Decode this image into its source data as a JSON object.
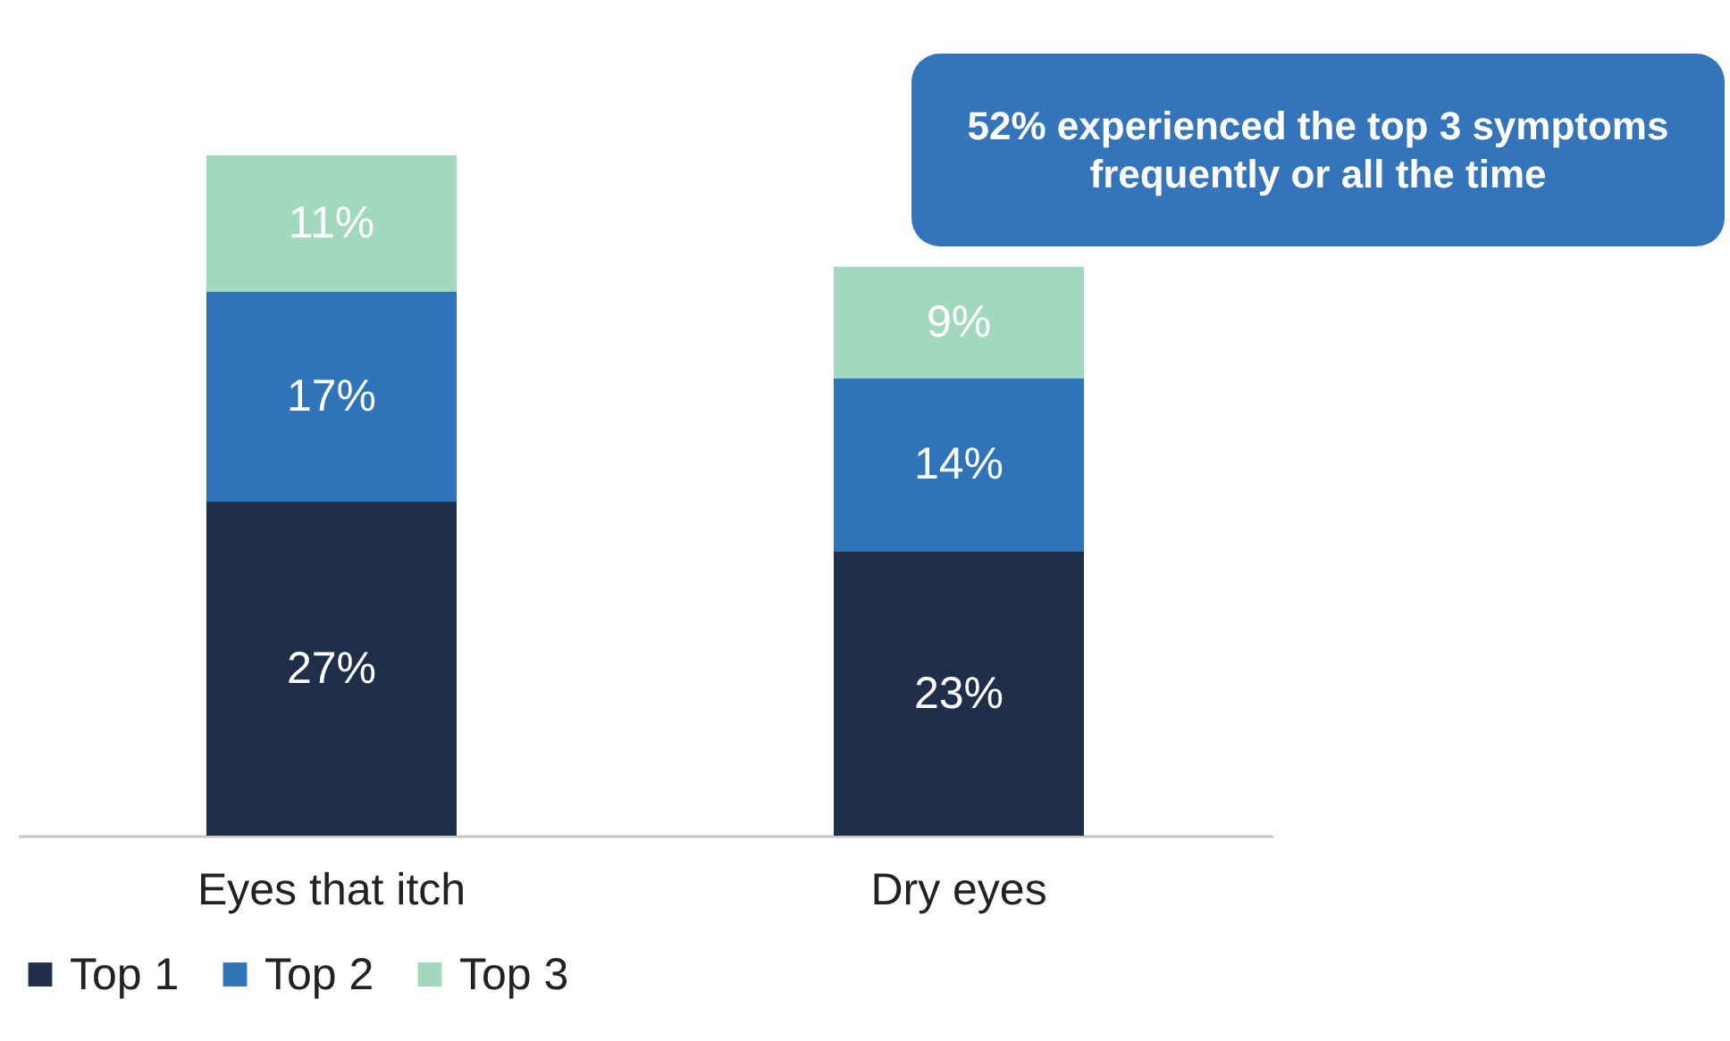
{
  "chart_data": {
    "type": "bar",
    "stacked": true,
    "categories": [
      "Eyes that itch",
      "Dry eyes"
    ],
    "series": [
      {
        "name": "Top 1",
        "color": "#1f2e49",
        "values": [
          27,
          23
        ],
        "value_labels": [
          "27%",
          "23%"
        ]
      },
      {
        "name": "Top 2",
        "color": "#2f74b8",
        "values": [
          17,
          14
        ],
        "value_labels": [
          "17%",
          "14%"
        ]
      },
      {
        "name": "Top 3",
        "color": "#a2d8bd",
        "values": [
          11,
          9
        ],
        "value_labels": [
          "11%",
          "9%"
        ]
      }
    ],
    "legend": "bottom",
    "annotations": [
      "52% experienced the top 3 symptoms frequently or all the time"
    ]
  }
}
